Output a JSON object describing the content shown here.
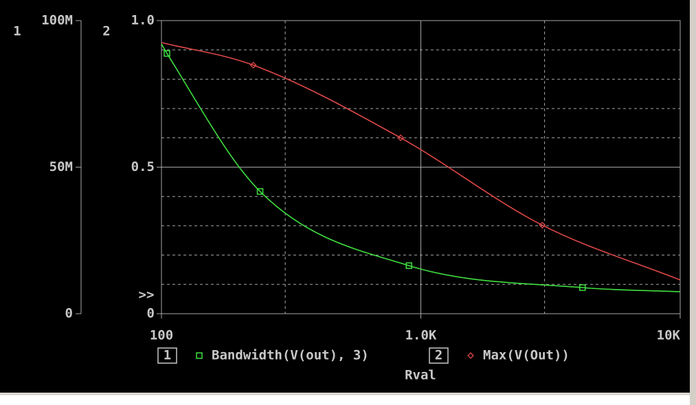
{
  "chart_data": {
    "type": "line",
    "xlabel": "Rval",
    "xscale": "log",
    "xlim": [
      100,
      10000
    ],
    "xticks": [
      100,
      {
        "value": 1000,
        "label": "1.0K"
      },
      {
        "value": 10000,
        "label": "10K"
      }
    ],
    "x_minor_grid": [
      300,
      3000
    ],
    "y_axis_number": "1",
    "ylim": [
      0,
      100000000
    ],
    "yticks": [
      0,
      {
        "value": 50000000,
        "label": "50M"
      },
      {
        "value": 100000000,
        "label": "100M"
      }
    ],
    "y2_axis_number": "2",
    "y2lim": [
      0,
      1
    ],
    "y2ticks": [
      0,
      0.5,
      {
        "value": 1,
        "label": "1.0"
      }
    ],
    "y2_minor_grid": [
      0.1,
      0.2,
      0.3,
      0.4,
      0.6,
      0.7,
      0.8,
      0.9
    ],
    "axis_cursor": ">>",
    "grid": true,
    "series": [
      {
        "name": "Bandwidth(V(out), 3)",
        "legend_number": "1",
        "color": "#40e040",
        "marker": "square",
        "axis": "y",
        "x": [
          100,
          105,
          240,
          900,
          4200,
          10000
        ],
        "values": [
          92000000,
          88800000,
          41700000,
          16400000,
          8900000,
          7500000
        ]
      },
      {
        "name": "Max(V(Out))",
        "legend_number": "2",
        "color": "#e04848",
        "marker": "diamond",
        "axis": "y2",
        "x": [
          100,
          226,
          836,
          2940,
          10000
        ],
        "values": [
          0.925,
          0.848,
          0.6,
          0.302,
          0.115
        ]
      }
    ]
  }
}
